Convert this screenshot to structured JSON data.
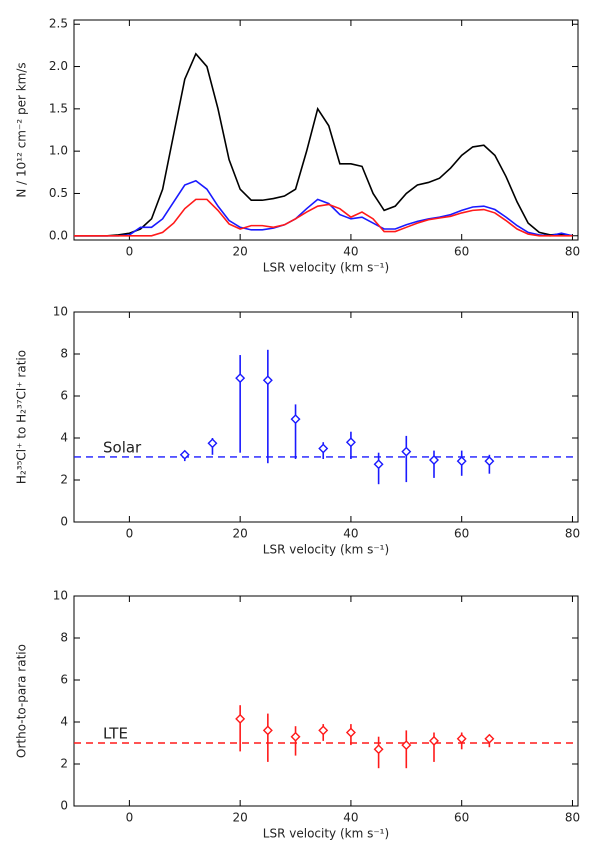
{
  "chart_data": [
    {
      "type": "line",
      "xlabel": "LSR velocity (km s⁻¹)",
      "ylabel": "N / 10¹² cm⁻² per km/s",
      "xlim": [
        -10,
        81
      ],
      "ylim": [
        -0.05,
        2.55
      ],
      "xticks": [
        0,
        20,
        40,
        60,
        80
      ],
      "yticks": [
        {
          "value": 0,
          "label": "0.0"
        },
        {
          "value": 0.5,
          "label": "0.5"
        },
        {
          "value": 1,
          "label": "1.0"
        },
        {
          "value": 1.5,
          "label": "1.5"
        },
        {
          "value": 2,
          "label": "2.0"
        },
        {
          "value": 2.5,
          "label": "2.5"
        }
      ],
      "x": [
        -10,
        -8,
        -6,
        -4,
        -2,
        0,
        2,
        4,
        6,
        8,
        10,
        12,
        14,
        16,
        18,
        20,
        22,
        24,
        26,
        28,
        30,
        32,
        34,
        36,
        38,
        40,
        42,
        44,
        46,
        48,
        50,
        52,
        54,
        56,
        58,
        60,
        62,
        64,
        66,
        68,
        70,
        72,
        74,
        76,
        78,
        80
      ],
      "series": [
        {
          "color": "#000000",
          "values": [
            0,
            0,
            0,
            0,
            0.01,
            0.03,
            0.08,
            0.2,
            0.55,
            1.2,
            1.85,
            2.15,
            2.0,
            1.5,
            0.9,
            0.55,
            0.42,
            0.42,
            0.44,
            0.47,
            0.55,
            1.0,
            1.5,
            1.3,
            0.85,
            0.85,
            0.82,
            0.5,
            0.3,
            0.35,
            0.5,
            0.6,
            0.63,
            0.68,
            0.8,
            0.95,
            1.05,
            1.07,
            0.95,
            0.7,
            0.4,
            0.15,
            0.04,
            0.01,
            0.02,
            0
          ]
        },
        {
          "color": "#1a1aff",
          "values": [
            0,
            0,
            0,
            0,
            0,
            0.01,
            0.1,
            0.1,
            0.2,
            0.4,
            0.6,
            0.65,
            0.55,
            0.35,
            0.18,
            0.1,
            0.07,
            0.07,
            0.09,
            0.13,
            0.2,
            0.32,
            0.43,
            0.38,
            0.25,
            0.2,
            0.22,
            0.15,
            0.08,
            0.08,
            0.13,
            0.17,
            0.2,
            0.22,
            0.25,
            0.3,
            0.34,
            0.35,
            0.31,
            0.22,
            0.12,
            0.04,
            0.01,
            0,
            0.03,
            0
          ]
        },
        {
          "color": "#ff1a1a",
          "values": [
            0,
            0,
            0,
            0,
            0,
            0,
            0,
            0,
            0.04,
            0.15,
            0.32,
            0.43,
            0.43,
            0.3,
            0.14,
            0.08,
            0.12,
            0.12,
            0.1,
            0.13,
            0.2,
            0.28,
            0.35,
            0.37,
            0.32,
            0.22,
            0.28,
            0.2,
            0.05,
            0.05,
            0.1,
            0.15,
            0.19,
            0.21,
            0.23,
            0.27,
            0.3,
            0.31,
            0.27,
            0.18,
            0.08,
            0.02,
            0,
            0,
            0,
            0
          ]
        }
      ]
    },
    {
      "type": "errorbar",
      "xlabel": "LSR velocity (km s⁻¹)",
      "ylabel": "H₂³⁵Cl⁺ to H₂³⁷Cl⁺ ratio",
      "xlim": [
        -10,
        81
      ],
      "ylim": [
        0,
        10
      ],
      "xticks": [
        0,
        20,
        40,
        60,
        80
      ],
      "yticks": [
        0,
        2,
        4,
        6,
        8,
        10
      ],
      "color": "#1a1aff",
      "x": [
        10,
        15,
        20,
        25,
        30,
        35,
        40,
        45,
        50,
        55,
        60,
        65
      ],
      "values": [
        3.2,
        3.75,
        6.85,
        6.75,
        4.9,
        3.5,
        3.8,
        2.75,
        3.35,
        2.95,
        2.9,
        2.9
      ],
      "errors_minus": [
        0.3,
        0.55,
        3.55,
        3.95,
        1.9,
        0.5,
        0.8,
        0.95,
        1.45,
        0.85,
        0.7,
        0.6
      ],
      "errors_plus": [
        0.2,
        0.25,
        1.1,
        1.45,
        0.7,
        0.3,
        0.5,
        0.55,
        0.75,
        0.45,
        0.5,
        0.3
      ],
      "reference": {
        "value": 3.1,
        "label": "Solar"
      }
    },
    {
      "type": "errorbar",
      "xlabel": "LSR velocity (km s⁻¹)",
      "ylabel": "Ortho-to-para ratio",
      "xlim": [
        -10,
        81
      ],
      "ylim": [
        0,
        10
      ],
      "xticks": [
        0,
        20,
        40,
        60,
        80
      ],
      "yticks": [
        0,
        2,
        4,
        6,
        8,
        10
      ],
      "color": "#ff1a1a",
      "x": [
        20,
        25,
        30,
        35,
        40,
        45,
        50,
        55,
        60,
        65
      ],
      "values": [
        4.15,
        3.6,
        3.3,
        3.6,
        3.5,
        2.7,
        2.9,
        3.1,
        3.2,
        3.2
      ],
      "errors_minus": [
        1.55,
        1.5,
        0.9,
        0.5,
        0.6,
        0.9,
        1.1,
        1.0,
        0.5,
        0.4
      ],
      "errors_plus": [
        0.65,
        0.8,
        0.5,
        0.3,
        0.4,
        0.6,
        0.7,
        0.4,
        0.3,
        0.2
      ],
      "reference": {
        "value": 3.0,
        "label": "LTE"
      }
    }
  ]
}
